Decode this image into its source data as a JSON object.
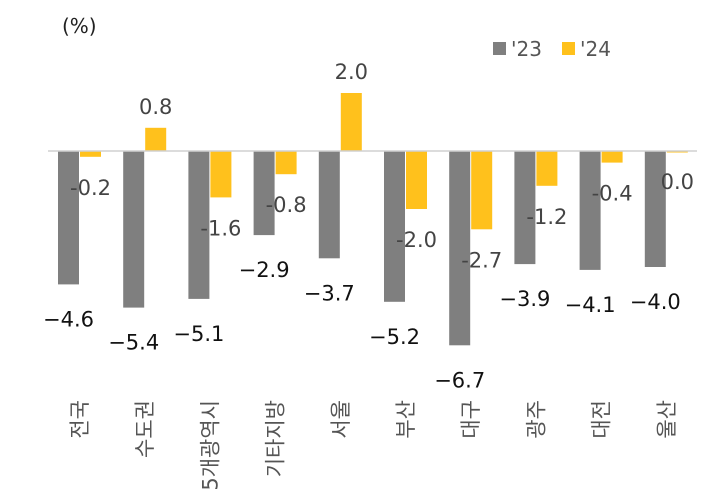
{
  "chart_data": {
    "type": "bar",
    "unit_label": "(%)",
    "categories": [
      "전국",
      "수도권",
      "5개광역시",
      "기타지방",
      "서울",
      "부산",
      "대구",
      "광주",
      "대전",
      "울산"
    ],
    "series": [
      {
        "name": "'23",
        "values": [
          -4.6,
          -5.4,
          -5.1,
          -2.9,
          -3.7,
          -5.2,
          -6.7,
          -3.9,
          -4.1,
          -4.0
        ],
        "color": "#7f7f7f"
      },
      {
        "name": "'24",
        "values": [
          -0.2,
          0.8,
          -1.6,
          -0.8,
          2.0,
          -2.0,
          -2.7,
          -1.2,
          -0.4,
          0.0
        ],
        "color": "#ffc11c"
      }
    ],
    "labels_23": [
      "−4.6",
      "−5.4",
      "−5.1",
      "−2.9",
      "−3.7",
      "−5.2",
      "−6.7",
      "−3.9",
      "−4.1",
      "−4.0"
    ],
    "labels_24": [
      "-0.2",
      "0.8",
      "-1.6",
      "-0.8",
      "2.0",
      "-2.0",
      "-2.7",
      "-1.2",
      "-0.4",
      "0.0"
    ],
    "ylim": [
      -7,
      2.5
    ],
    "grid": false,
    "legend_position": "top-right"
  }
}
